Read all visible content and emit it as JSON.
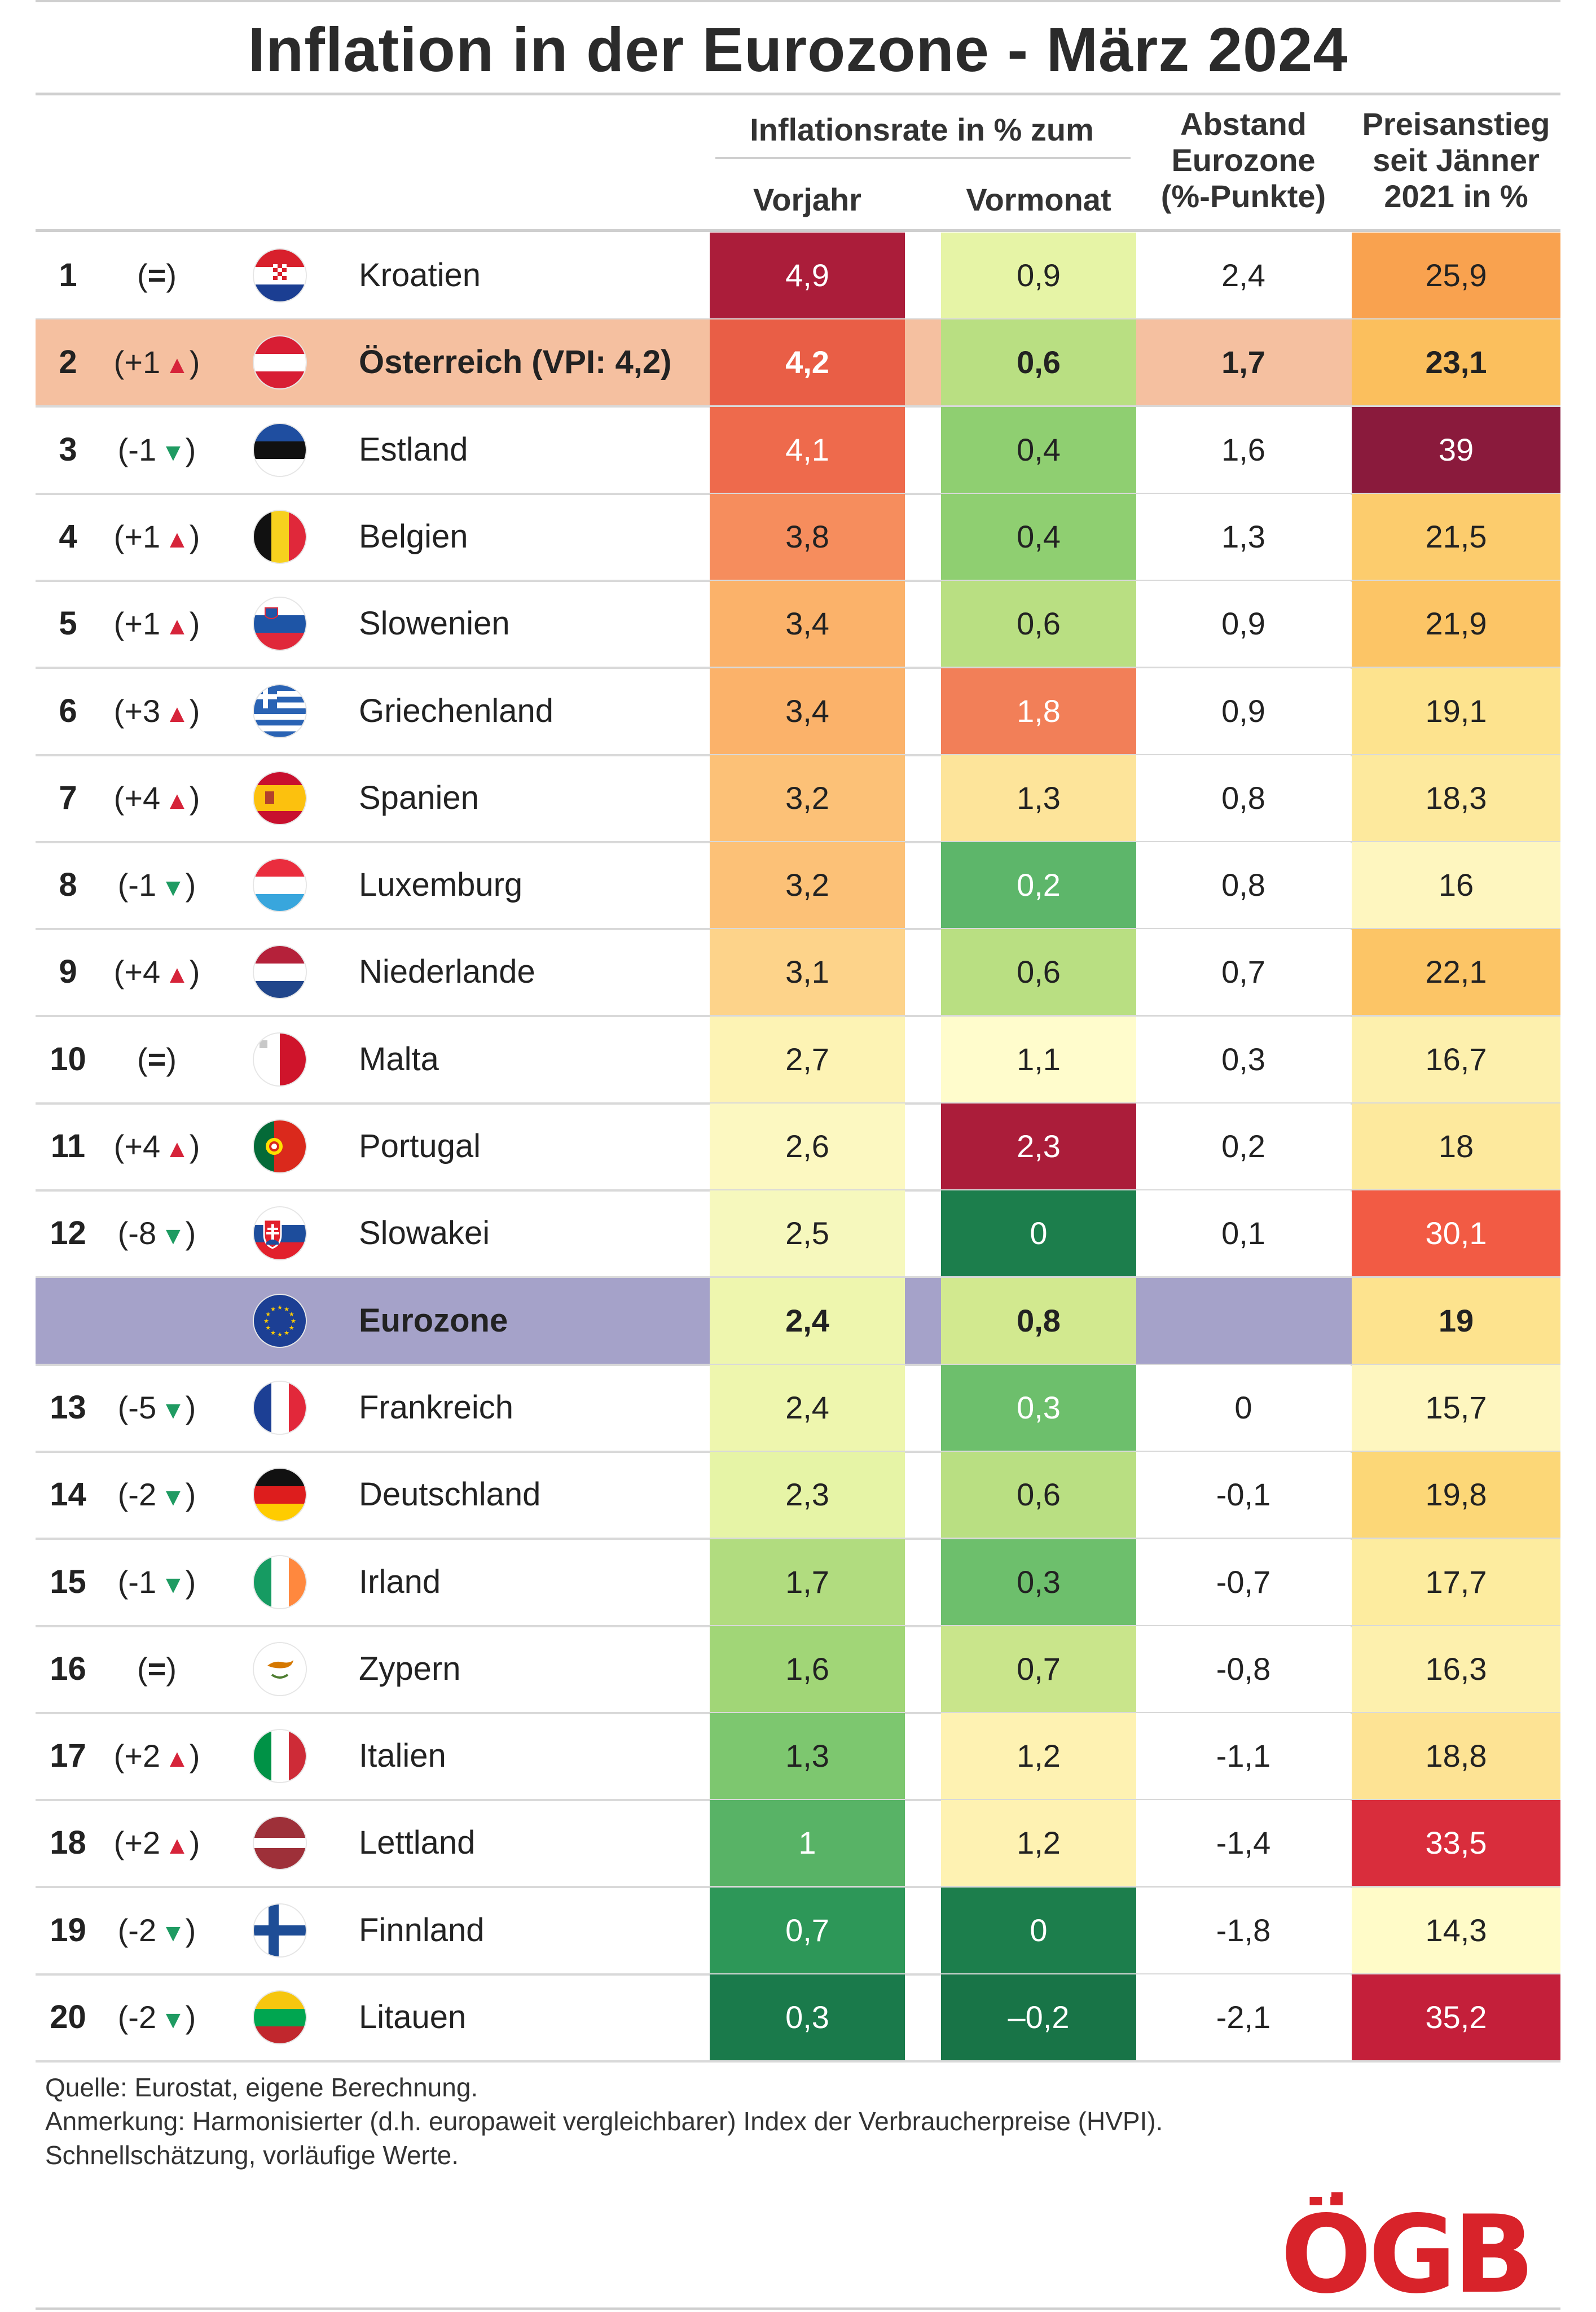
{
  "title": "Inflation in der Eurozone - März 2024",
  "headers": {
    "group": "Inflationsrate in % zum",
    "vorjahr": "Vorjahr",
    "vormonat": "Vormonat",
    "abstand": [
      "Abstand",
      "Eurozone",
      "(%-Punkte)"
    ],
    "preisanstieg": [
      "Preisanstieg",
      "seit Jänner",
      "2021 in %"
    ]
  },
  "colors": {
    "highlight_austria": "#f5c0a0",
    "highlight_eurozone": "#a5a2c9",
    "arrow_up": "#d6243a",
    "arrow_down": "#1f9b62",
    "logo_red": "#d8232a"
  },
  "rows": [
    {
      "rank": "1",
      "change": "(",
      "sym": "=",
      "dir": "eq",
      "flag": "croatia-flag-icon",
      "name": "Kroatien",
      "vj": "4,9",
      "vm": "0,9",
      "ab": "2,4",
      "pr": "25,9",
      "c": [
        "#ab1d3a",
        "#e6f4a6",
        "#ffffff",
        "#f9a24f"
      ],
      "w": [
        1,
        0,
        0,
        0
      ]
    },
    {
      "rank": "2",
      "change": "(+1",
      "sym": "▲",
      "dir": "up",
      "flag": "austria-flag-icon",
      "name": "Österreich (VPI: 4,2)",
      "vj": "4,2",
      "vm": "0,6",
      "ab": "1,7",
      "pr": "23,1",
      "c": [
        "#e95e46",
        "#b9df82",
        "#f5c0a0",
        "#fbbf5d"
      ],
      "w": [
        1,
        0,
        0,
        0
      ],
      "hl": "austria"
    },
    {
      "rank": "3",
      "change": "(-1",
      "sym": "▼",
      "dir": "down",
      "flag": "estonia-flag-icon",
      "name": "Estland",
      "vj": "4,1",
      "vm": "0,4",
      "ab": "1,6",
      "pr": "39",
      "c": [
        "#ee6a4c",
        "#8fcf71",
        "#ffffff",
        "#8a1a3c"
      ],
      "w": [
        1,
        0,
        0,
        1
      ]
    },
    {
      "rank": "4",
      "change": "(+1",
      "sym": "▲",
      "dir": "up",
      "flag": "belgium-flag-icon",
      "name": "Belgien",
      "vj": "3,8",
      "vm": "0,4",
      "ab": "1,3",
      "pr": "21,5",
      "c": [
        "#f68d5d",
        "#8fcf71",
        "#ffffff",
        "#fccc6d"
      ],
      "w": [
        0,
        0,
        0,
        0
      ]
    },
    {
      "rank": "5",
      "change": "(+1",
      "sym": "▲",
      "dir": "up",
      "flag": "slovenia-flag-icon",
      "name": "Slowenien",
      "vj": "3,4",
      "vm": "0,6",
      "ab": "0,9",
      "pr": "21,9",
      "c": [
        "#fbb26a",
        "#b9df82",
        "#ffffff",
        "#fcc566"
      ],
      "w": [
        0,
        0,
        0,
        0
      ]
    },
    {
      "rank": "6",
      "change": "(+3",
      "sym": "▲",
      "dir": "up",
      "flag": "greece-flag-icon",
      "name": "Griechenland",
      "vj": "3,4",
      "vm": "1,8",
      "ab": "0,9",
      "pr": "19,1",
      "c": [
        "#fbb26a",
        "#f27f58",
        "#ffffff",
        "#fde38e"
      ],
      "w": [
        0,
        1,
        0,
        0
      ]
    },
    {
      "rank": "7",
      "change": "(+4",
      "sym": "▲",
      "dir": "up",
      "flag": "spain-flag-icon",
      "name": "Spanien",
      "vj": "3,2",
      "vm": "1,3",
      "ab": "0,8",
      "pr": "18,3",
      "c": [
        "#fcc177",
        "#fde49a",
        "#ffffff",
        "#fde99d"
      ],
      "w": [
        0,
        0,
        0,
        0
      ]
    },
    {
      "rank": "8",
      "change": "(-1",
      "sym": "▼",
      "dir": "down",
      "flag": "luxembourg-flag-icon",
      "name": "Luxemburg",
      "vj": "3,2",
      "vm": "0,2",
      "ab": "0,8",
      "pr": "16",
      "c": [
        "#fcc177",
        "#5db66a",
        "#ffffff",
        "#fef6bf"
      ],
      "w": [
        0,
        1,
        0,
        0
      ]
    },
    {
      "rank": "9",
      "change": "(+4",
      "sym": "▲",
      "dir": "up",
      "flag": "netherlands-flag-icon",
      "name": "Niederlande",
      "vj": "3,1",
      "vm": "0,6",
      "ab": "0,7",
      "pr": "22,1",
      "c": [
        "#fdd38a",
        "#b9df82",
        "#ffffff",
        "#fcc566"
      ],
      "w": [
        0,
        0,
        0,
        0
      ]
    },
    {
      "rank": "10",
      "change": "(",
      "sym": "=",
      "dir": "eq",
      "flag": "malta-flag-icon",
      "name": "Malta",
      "vj": "2,7",
      "vm": "1,1",
      "ab": "0,3",
      "pr": "16,7",
      "c": [
        "#fdf3b4",
        "#fffccc",
        "#ffffff",
        "#fdf0ad"
      ],
      "w": [
        0,
        0,
        0,
        0
      ]
    },
    {
      "rank": "11",
      "change": "(+4",
      "sym": "▲",
      "dir": "up",
      "flag": "portugal-flag-icon",
      "name": "Portugal",
      "vj": "2,6",
      "vm": "2,3",
      "ab": "0,2",
      "pr": "18",
      "c": [
        "#fcf8c1",
        "#ab1d3a",
        "#ffffff",
        "#fde99d"
      ],
      "w": [
        0,
        1,
        0,
        0
      ]
    },
    {
      "rank": "12",
      "change": "(-8",
      "sym": "▼",
      "dir": "down",
      "flag": "slovakia-flag-icon",
      "name": "Slowakei",
      "vj": "2,5",
      "vm": "0",
      "ab": "0,1",
      "pr": "30,1",
      "c": [
        "#f6f8bd",
        "#1c7e4c",
        "#ffffff",
        "#f25b44"
      ],
      "w": [
        0,
        1,
        0,
        1
      ]
    },
    {
      "rank": "",
      "change": "",
      "sym": "",
      "dir": "none",
      "flag": "eu-flag-icon",
      "name": "Eurozone",
      "vj": "2,4",
      "vm": "0,8",
      "ab": "",
      "pr": "19",
      "c": [
        "#eef6ae",
        "#d2e98f",
        "#a5a2c9",
        "#fde38e"
      ],
      "w": [
        0,
        0,
        0,
        0
      ],
      "hl": "eurozone",
      "bold": true
    },
    {
      "rank": "13",
      "change": "(-5",
      "sym": "▼",
      "dir": "down",
      "flag": "france-flag-icon",
      "name": "Frankreich",
      "vj": "2,4",
      "vm": "0,3",
      "ab": "0",
      "pr": "15,7",
      "c": [
        "#eef6ae",
        "#6dbf6c",
        "#ffffff",
        "#fef6bf"
      ],
      "w": [
        0,
        1,
        0,
        0
      ]
    },
    {
      "rank": "14",
      "change": "(-2",
      "sym": "▼",
      "dir": "down",
      "flag": "germany-flag-icon",
      "name": "Deutschland",
      "vj": "2,3",
      "vm": "0,6",
      "ab": "-0,1",
      "pr": "19,8",
      "c": [
        "#e6f4a6",
        "#b9df82",
        "#ffffff",
        "#fcd777"
      ],
      "w": [
        0,
        0,
        0,
        0
      ]
    },
    {
      "rank": "15",
      "change": "(-1",
      "sym": "▼",
      "dir": "down",
      "flag": "ireland-flag-icon",
      "name": "Irland",
      "vj": "1,7",
      "vm": "0,3",
      "ab": "-0,7",
      "pr": "17,7",
      "c": [
        "#b1dc7f",
        "#6dbf6c",
        "#ffffff",
        "#fdec9f"
      ],
      "w": [
        0,
        0,
        0,
        0
      ]
    },
    {
      "rank": "16",
      "change": "(",
      "sym": "=",
      "dir": "eq",
      "flag": "cyprus-flag-icon",
      "name": "Zypern",
      "vj": "1,6",
      "vm": "0,7",
      "ab": "-0,8",
      "pr": "16,3",
      "c": [
        "#a1d677",
        "#c9e58b",
        "#ffffff",
        "#fdf0ad"
      ],
      "w": [
        0,
        0,
        0,
        0
      ]
    },
    {
      "rank": "17",
      "change": "(+2",
      "sym": "▲",
      "dir": "up",
      "flag": "italy-flag-icon",
      "name": "Italien",
      "vj": "1,3",
      "vm": "1,2",
      "ab": "-1,1",
      "pr": "18,8",
      "c": [
        "#7dc76f",
        "#fef2b2",
        "#ffffff",
        "#fde394"
      ],
      "w": [
        0,
        0,
        0,
        0
      ]
    },
    {
      "rank": "18",
      "change": "(+2",
      "sym": "▲",
      "dir": "up",
      "flag": "latvia-flag-icon",
      "name": "Lettland",
      "vj": "1",
      "vm": "1,2",
      "ab": "-1,4",
      "pr": "33,5",
      "c": [
        "#58b366",
        "#fef2b2",
        "#ffffff",
        "#d92d3c"
      ],
      "w": [
        1,
        0,
        0,
        1
      ]
    },
    {
      "rank": "19",
      "change": "(-2",
      "sym": "▼",
      "dir": "down",
      "flag": "finland-flag-icon",
      "name": "Finnland",
      "vj": "0,7",
      "vm": "0",
      "ab": "-1,8",
      "pr": "14,3",
      "c": [
        "#2d9758",
        "#1c7e4c",
        "#ffffff",
        "#fffbc8"
      ],
      "w": [
        1,
        1,
        0,
        0
      ]
    },
    {
      "rank": "20",
      "change": "(-2",
      "sym": "▼",
      "dir": "down",
      "flag": "lithuania-flag-icon",
      "name": "Litauen",
      "vj": "0,3",
      "vm": "–0,2",
      "ab": "-2,1",
      "pr": "35,2",
      "c": [
        "#1a7a4b",
        "#187447",
        "#ffffff",
        "#c41f3a"
      ],
      "w": [
        1,
        1,
        0,
        1
      ]
    }
  ],
  "footer": [
    "Quelle: Eurostat, eigene Berechnung.",
    "Anmerkung: Harmonisierter (d.h. europaweit vergleichbarer) Index der Verbraucherpreise (HVPI).",
    "Schnellschätzung, vorläufige Werte."
  ],
  "logo": "ÖGB"
}
